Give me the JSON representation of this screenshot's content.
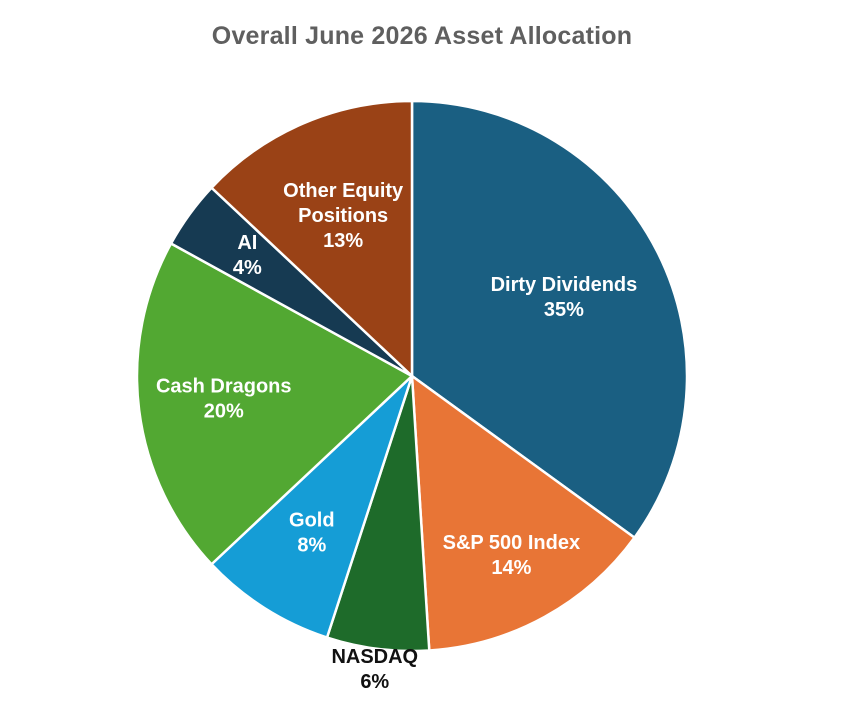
{
  "chart_data": {
    "type": "pie",
    "title": "Overall June 2026 Asset Allocation",
    "slices": [
      {
        "label": [
          "Dirty Dividends"
        ],
        "pct_label": "35%",
        "value": 35,
        "color": "#1a5f82",
        "text_color": "#ffffff"
      },
      {
        "label": [
          "S&P 500 Index"
        ],
        "pct_label": "14%",
        "value": 14,
        "color": "#e87536",
        "text_color": "#ffffff"
      },
      {
        "label": [
          "NASDAQ"
        ],
        "pct_label": "6%",
        "value": 6,
        "color": "#1e6b2a",
        "text_color": "#111111"
      },
      {
        "label": [
          "Gold"
        ],
        "pct_label": "8%",
        "value": 8,
        "color": "#159dd6",
        "text_color": "#ffffff"
      },
      {
        "label": [
          "Cash Dragons"
        ],
        "pct_label": "20%",
        "value": 20,
        "color": "#52a832",
        "text_color": "#ffffff"
      },
      {
        "label": [
          "AI"
        ],
        "pct_label": "4%",
        "value": 4,
        "color": "#163a52",
        "text_color": "#ffffff"
      },
      {
        "label": [
          "Other Equity",
          "Positions"
        ],
        "pct_label": "13%",
        "value": 13,
        "color": "#9a4216",
        "text_color": "#ffffff"
      }
    ],
    "start_angle": "12 o'clock",
    "direction": "clockwise",
    "legend": "none"
  }
}
